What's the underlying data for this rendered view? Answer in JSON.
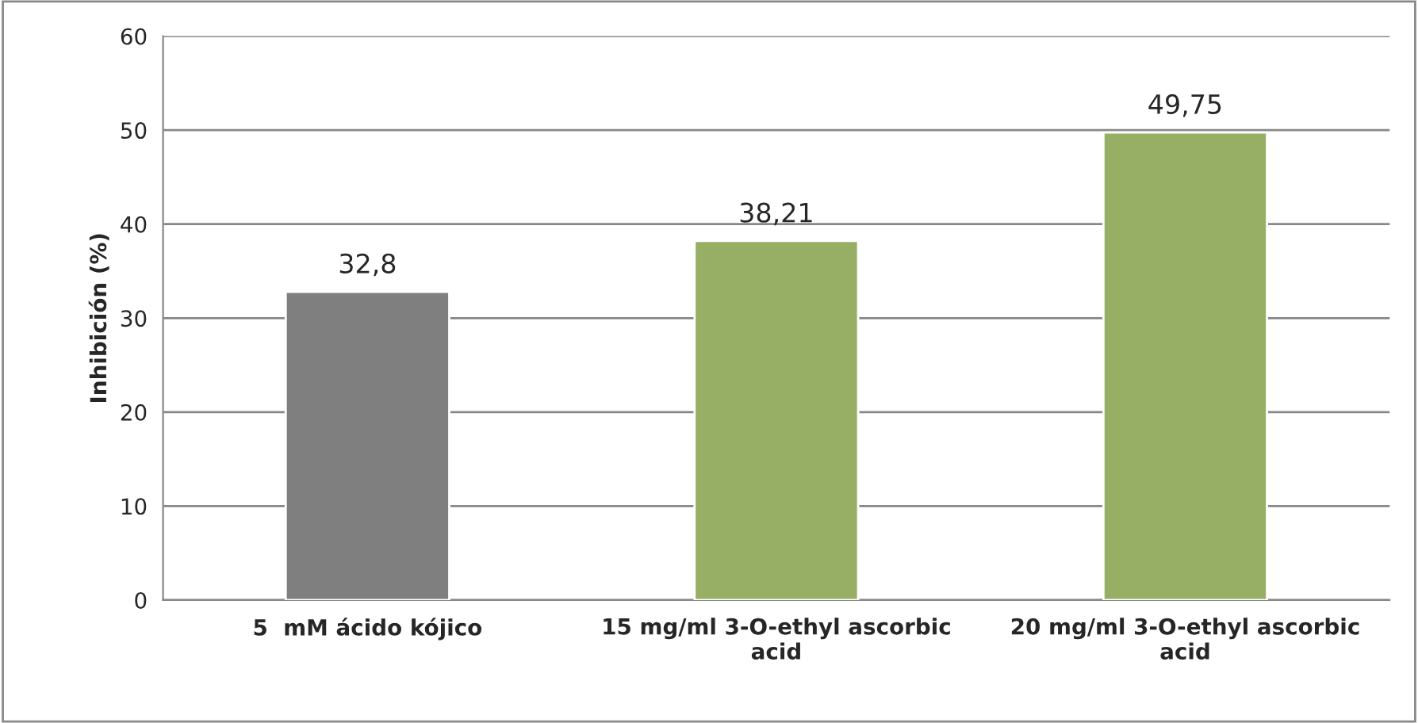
{
  "chart_data": {
    "type": "bar",
    "ylabel": "Inhibición (%)",
    "categories": [
      "5  mM ácido kójico",
      "15 mg/ml 3-O-ethyl ascorbic\nacid",
      "20 mg/ml 3-O-ethyl ascorbic\nacid"
    ],
    "values": [
      32.8,
      38.21,
      49.75
    ],
    "colors": [
      "#7f7f7f",
      "#9bbb59",
      "#9bbb59"
    ],
    "value_labels": [
      "32,8",
      "38,21",
      "49,75"
    ],
    "ylim": [
      0,
      60
    ],
    "yticks": [
      0,
      10,
      20,
      30,
      40,
      50,
      60
    ],
    "grid": "y"
  }
}
